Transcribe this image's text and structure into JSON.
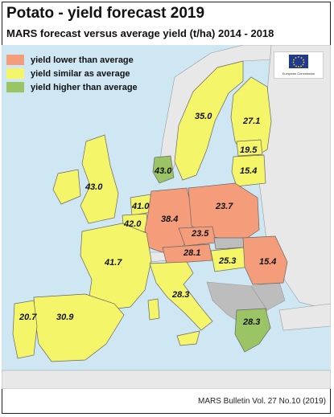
{
  "header": {
    "title": "Potato - yield forecast 2019",
    "subtitle": "MARS forecast versus average yield (t/ha) 2014 - 2018"
  },
  "legend": {
    "items": [
      {
        "label": "yield lower than average",
        "color": "#f59d7a"
      },
      {
        "label": "yield similar as average",
        "color": "#f5f56a"
      },
      {
        "label": "yield higher than average",
        "color": "#9bc464"
      }
    ]
  },
  "colors": {
    "sea": "#cfe7f2",
    "lower": "#f59d7a",
    "similar": "#f5f56a",
    "higher": "#9bc464",
    "no_data": "#bdbdbd",
    "non_eu": "#e8e8e8"
  },
  "logo": {
    "caption": "European Commission"
  },
  "regions": {
    "sweden": "35.0",
    "finland": "27.1",
    "estonia": "19.5",
    "latvia_lithuania": "15.4",
    "denmark": "43.0",
    "uk_ireland": "43.0",
    "netherlands": "41.0",
    "belgium": "42.0",
    "germany": "38.4",
    "poland": "23.7",
    "czechia": "23.5",
    "austria": "28.1",
    "hungary": "25.3",
    "romania": "15.4",
    "france": "41.7",
    "italy": "28.3",
    "greece": "28.3",
    "portugal": "20.7",
    "spain": "30.9"
  },
  "footer": {
    "source": "MARS Bulletin Vol. 27 No.10 (2019)"
  }
}
